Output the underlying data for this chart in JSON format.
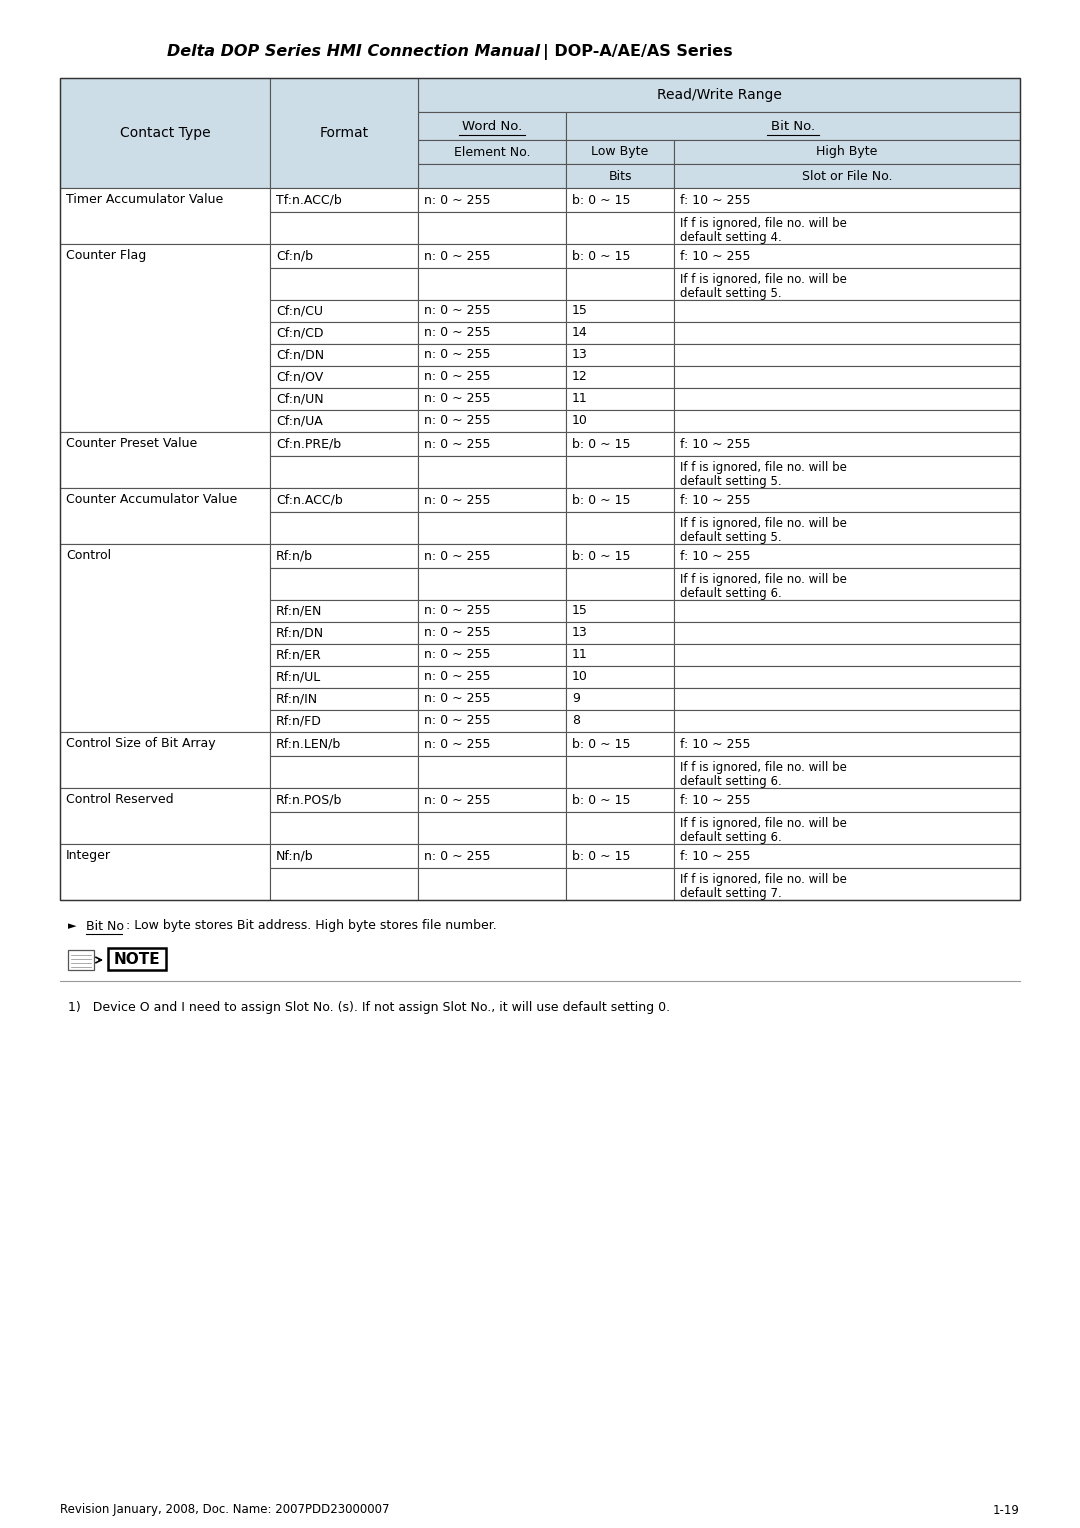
{
  "title_italic": "Delta DOP Series HMI Connection Manual",
  "title_separator": " | ",
  "title_normal": "DOP-A/AE/AS Series",
  "page_num": "1-19",
  "footer_left": "Revision January, 2008, Doc. Name: 2007PDD23000007",
  "note_text": "1)   Device O and I need to assign Slot No. (s). If not assign Slot No., it will use default setting 0.",
  "bit_no_prefix": "Bit No",
  "bit_no_suffix": " : Low byte stores Bit address. High byte stores file number.",
  "header_bg_color": "#cddde8",
  "white_bg": "#ffffff",
  "rows": [
    {
      "contact_type": "Timer Accumulator Value",
      "sub_rows": [
        {
          "format": "Tf:n.ACC/b",
          "word_no": "n: 0 ~ 255",
          "low_byte": "b: 0 ~ 15",
          "high_byte": "f: 10 ~ 255"
        },
        {
          "format": "",
          "word_no": "",
          "low_byte": "",
          "high_byte": "If f is ignored, file no. will be\ndefault setting 4."
        }
      ]
    },
    {
      "contact_type": "Counter Flag",
      "sub_rows": [
        {
          "format": "Cf:n/b",
          "word_no": "n: 0 ~ 255",
          "low_byte": "b: 0 ~ 15",
          "high_byte": "f: 10 ~ 255"
        },
        {
          "format": "",
          "word_no": "",
          "low_byte": "",
          "high_byte": "If f is ignored, file no. will be\ndefault setting 5."
        },
        {
          "format": "Cf:n/CU",
          "word_no": "n: 0 ~ 255",
          "low_byte": "15",
          "high_byte": ""
        },
        {
          "format": "Cf:n/CD",
          "word_no": "n: 0 ~ 255",
          "low_byte": "14",
          "high_byte": ""
        },
        {
          "format": "Cf:n/DN",
          "word_no": "n: 0 ~ 255",
          "low_byte": "13",
          "high_byte": ""
        },
        {
          "format": "Cf:n/OV",
          "word_no": "n: 0 ~ 255",
          "low_byte": "12",
          "high_byte": ""
        },
        {
          "format": "Cf:n/UN",
          "word_no": "n: 0 ~ 255",
          "low_byte": "11",
          "high_byte": ""
        },
        {
          "format": "Cf:n/UA",
          "word_no": "n: 0 ~ 255",
          "low_byte": "10",
          "high_byte": ""
        }
      ]
    },
    {
      "contact_type": "Counter Preset Value",
      "sub_rows": [
        {
          "format": "Cf:n.PRE/b",
          "word_no": "n: 0 ~ 255",
          "low_byte": "b: 0 ~ 15",
          "high_byte": "f: 10 ~ 255"
        },
        {
          "format": "",
          "word_no": "",
          "low_byte": "",
          "high_byte": "If f is ignored, file no. will be\ndefault setting 5."
        }
      ]
    },
    {
      "contact_type": "Counter Accumulator Value",
      "sub_rows": [
        {
          "format": "Cf:n.ACC/b",
          "word_no": "n: 0 ~ 255",
          "low_byte": "b: 0 ~ 15",
          "high_byte": "f: 10 ~ 255"
        },
        {
          "format": "",
          "word_no": "",
          "low_byte": "",
          "high_byte": "If f is ignored, file no. will be\ndefault setting 5."
        }
      ]
    },
    {
      "contact_type": "Control",
      "sub_rows": [
        {
          "format": "Rf:n/b",
          "word_no": "n: 0 ~ 255",
          "low_byte": "b: 0 ~ 15",
          "high_byte": "f: 10 ~ 255"
        },
        {
          "format": "",
          "word_no": "",
          "low_byte": "",
          "high_byte": "If f is ignored, file no. will be\ndefault setting 6."
        },
        {
          "format": "Rf:n/EN",
          "word_no": "n: 0 ~ 255",
          "low_byte": "15",
          "high_byte": ""
        },
        {
          "format": "Rf:n/DN",
          "word_no": "n: 0 ~ 255",
          "low_byte": "13",
          "high_byte": ""
        },
        {
          "format": "Rf:n/ER",
          "word_no": "n: 0 ~ 255",
          "low_byte": "11",
          "high_byte": ""
        },
        {
          "format": "Rf:n/UL",
          "word_no": "n: 0 ~ 255",
          "low_byte": "10",
          "high_byte": ""
        },
        {
          "format": "Rf:n/IN",
          "word_no": "n: 0 ~ 255",
          "low_byte": "9",
          "high_byte": ""
        },
        {
          "format": "Rf:n/FD",
          "word_no": "n: 0 ~ 255",
          "low_byte": "8",
          "high_byte": ""
        }
      ]
    },
    {
      "contact_type": "Control Size of Bit Array",
      "sub_rows": [
        {
          "format": "Rf:n.LEN/b",
          "word_no": "n: 0 ~ 255",
          "low_byte": "b: 0 ~ 15",
          "high_byte": "f: 10 ~ 255"
        },
        {
          "format": "",
          "word_no": "",
          "low_byte": "",
          "high_byte": "If f is ignored, file no. will be\ndefault setting 6."
        }
      ]
    },
    {
      "contact_type": "Control Reserved",
      "sub_rows": [
        {
          "format": "Rf:n.POS/b",
          "word_no": "n: 0 ~ 255",
          "low_byte": "b: 0 ~ 15",
          "high_byte": "f: 10 ~ 255"
        },
        {
          "format": "",
          "word_no": "",
          "low_byte": "",
          "high_byte": "If f is ignored, file no. will be\ndefault setting 6."
        }
      ]
    },
    {
      "contact_type": "Integer",
      "sub_rows": [
        {
          "format": "Nf:n/b",
          "word_no": "n: 0 ~ 255",
          "low_byte": "b: 0 ~ 15",
          "high_byte": "f: 10 ~ 255"
        },
        {
          "format": "",
          "word_no": "",
          "low_byte": "",
          "high_byte": "If f is ignored, file no. will be\ndefault setting 7."
        }
      ]
    }
  ],
  "row_data_heights": {
    "Timer Accumulator Value": [
      24,
      32
    ],
    "Counter Flag": [
      24,
      32,
      22,
      22,
      22,
      22,
      22,
      22
    ],
    "Counter Preset Value": [
      24,
      32
    ],
    "Counter Accumulator Value": [
      24,
      32
    ],
    "Control": [
      24,
      32,
      22,
      22,
      22,
      22,
      22,
      22
    ],
    "Control Size of Bit Array": [
      24,
      32
    ],
    "Control Reserved": [
      24,
      32
    ],
    "Integer": [
      24,
      32
    ]
  }
}
